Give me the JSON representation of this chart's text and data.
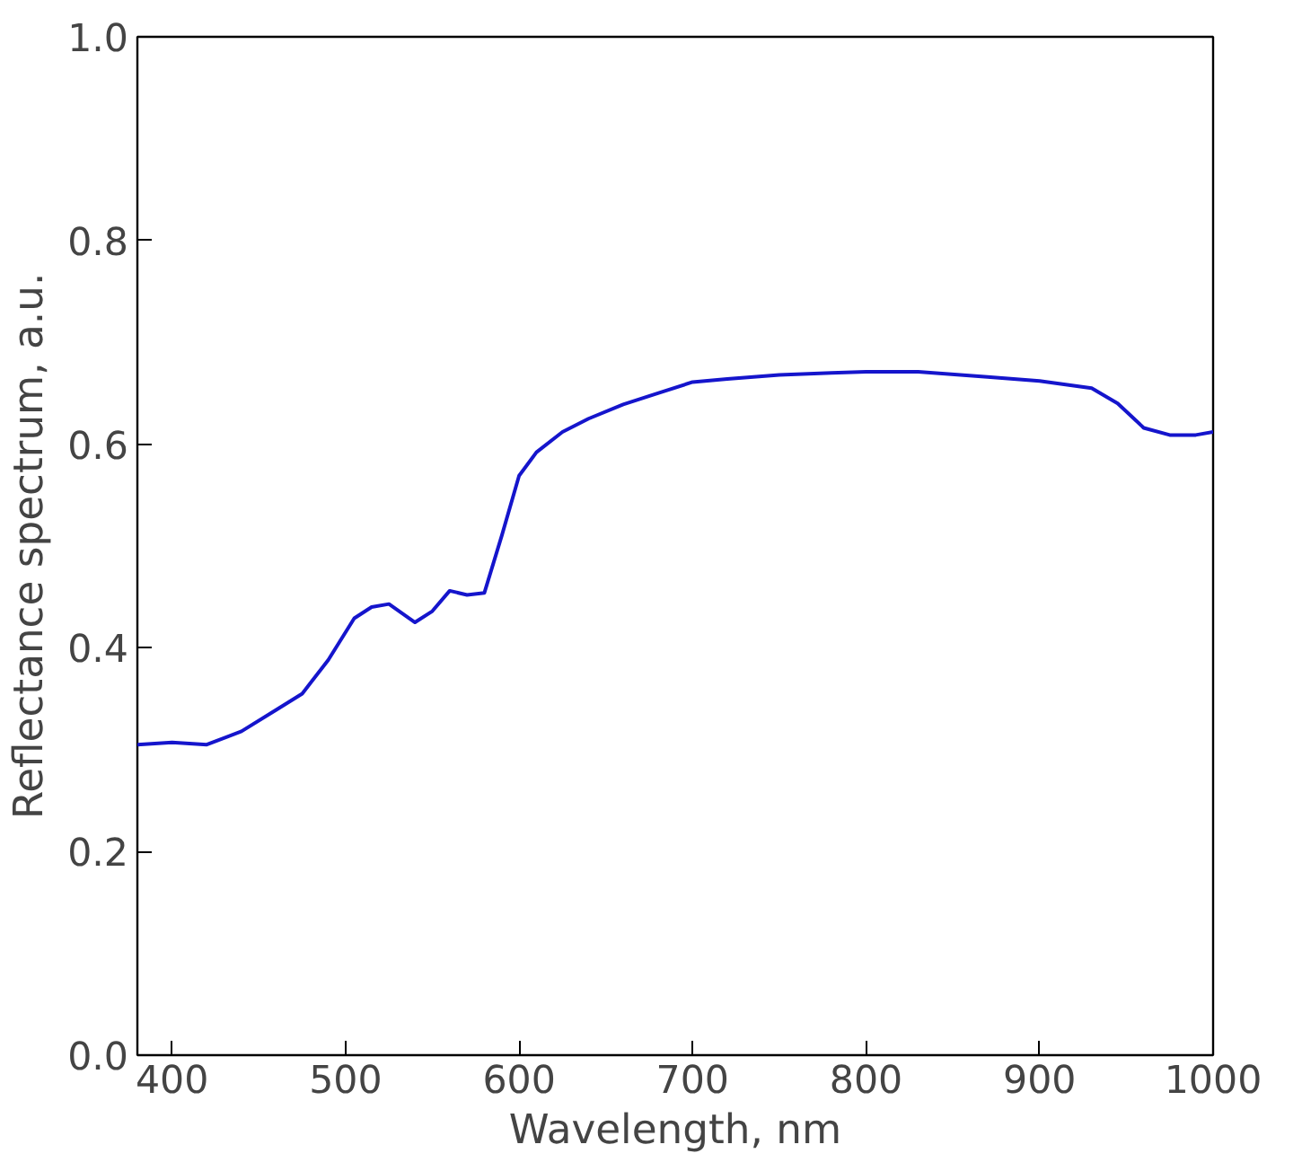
{
  "chart_data": {
    "type": "line",
    "xlabel": "Wavelength, nm",
    "ylabel": "Reflectance spectrum, a.u.",
    "x": [
      380,
      400,
      420,
      440,
      460,
      475,
      490,
      505,
      515,
      525,
      540,
      550,
      560,
      570,
      580,
      590,
      600,
      610,
      625,
      640,
      660,
      680,
      700,
      720,
      750,
      780,
      800,
      830,
      870,
      900,
      930,
      945,
      960,
      975,
      990,
      1000
    ],
    "series": [
      {
        "color": "#1515cc",
        "values": [
          0.305,
          0.307,
          0.305,
          0.318,
          0.339,
          0.355,
          0.388,
          0.429,
          0.44,
          0.443,
          0.425,
          0.436,
          0.456,
          0.452,
          0.454,
          0.51,
          0.569,
          0.592,
          0.612,
          0.625,
          0.639,
          0.65,
          0.661,
          0.664,
          0.668,
          0.67,
          0.671,
          0.671,
          0.666,
          0.662,
          0.655,
          0.64,
          0.616,
          0.609,
          0.609,
          0.612
        ]
      }
    ],
    "xlim": [
      380,
      1000
    ],
    "ylim": [
      0,
      1
    ],
    "xticks": [
      400,
      500,
      600,
      700,
      800,
      900,
      1000
    ],
    "yticks": [
      {
        "value": 0,
        "label": "0.0"
      },
      0.2,
      0.4,
      0.6,
      0.8,
      {
        "value": 1,
        "label": "1.0"
      }
    ],
    "grid": false,
    "marker": "none",
    "line_style": "solid"
  }
}
